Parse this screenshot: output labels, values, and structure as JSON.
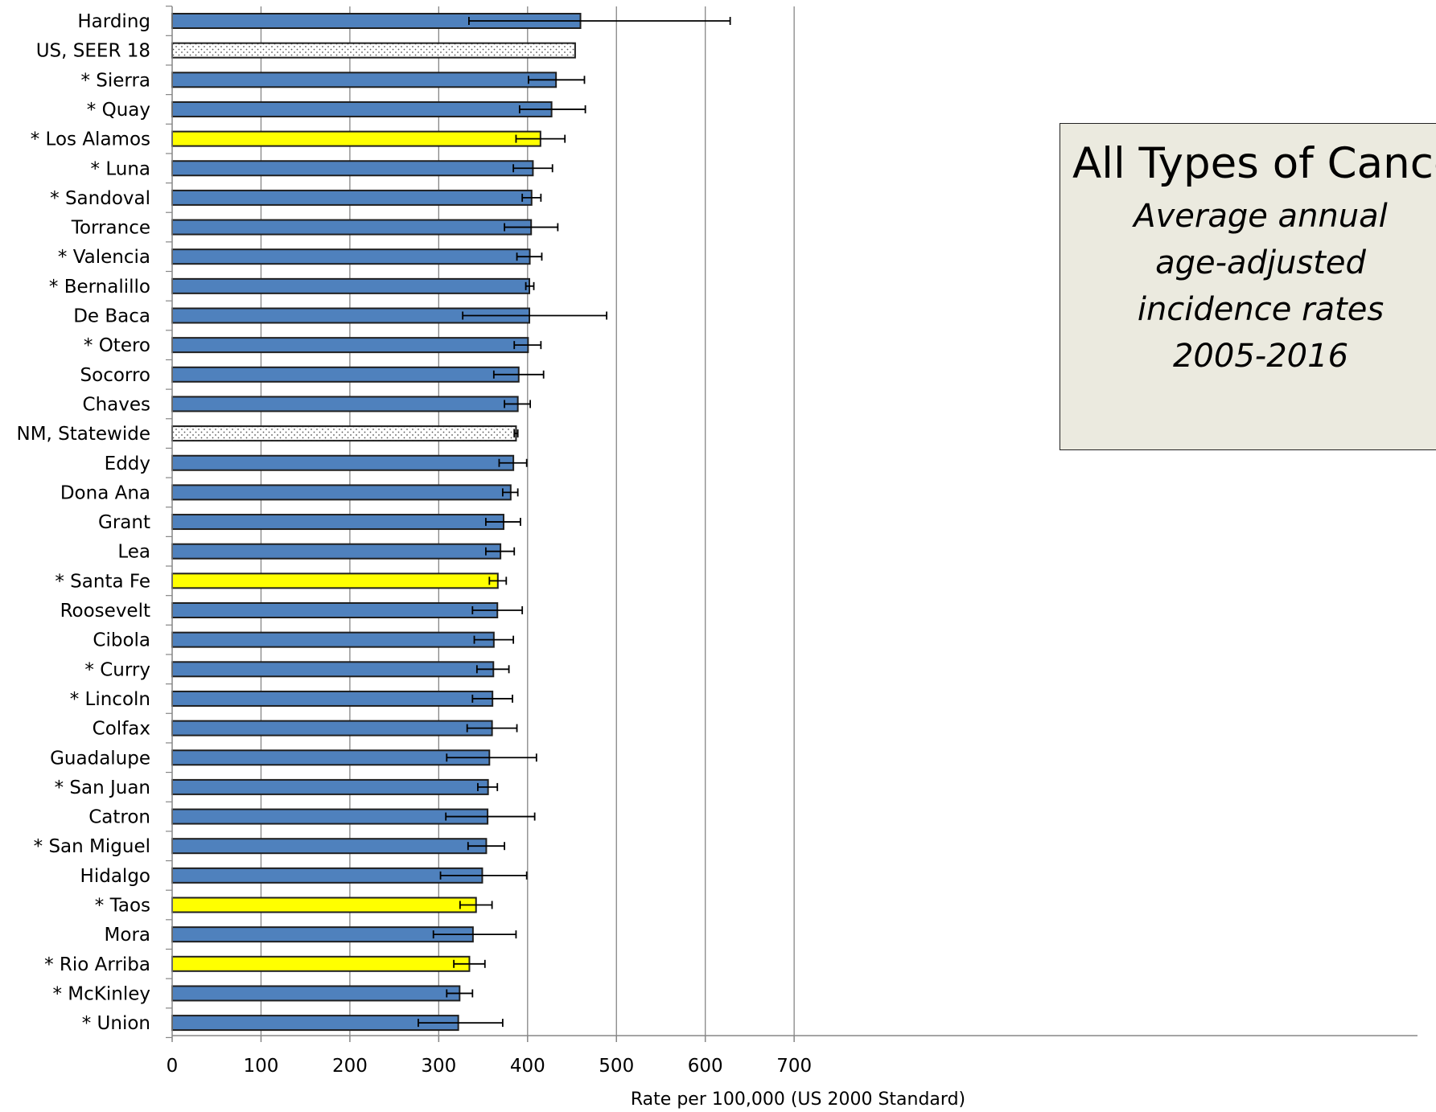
{
  "chart_data": {
    "type": "bar",
    "orientation": "horizontal",
    "title": "All Types of Cancer (Combined)",
    "subtitle": [
      "Average annual",
      "age-adjusted",
      "incidence rates",
      "2005-2016"
    ],
    "xlabel": "Rate per 100,000 (US 2000 Standard)",
    "ylabel": "",
    "xlim": [
      0,
      700
    ],
    "xticks": [
      0,
      100,
      200,
      300,
      400,
      500,
      600,
      700
    ],
    "grid": "vertical",
    "colors": {
      "county": "#4f81bd",
      "highlight": "#ffff00",
      "reference": "#ffffff",
      "border": "#1f1f1f",
      "grid": "#868686"
    },
    "categories": [
      "Harding",
      "US, SEER 18",
      "* Sierra",
      "* Quay",
      "* Los Alamos",
      "* Luna",
      "* Sandoval",
      "Torrance",
      "* Valencia",
      "* Bernalillo",
      "De Baca",
      "* Otero",
      "Socorro",
      "Chaves",
      "NM, Statewide",
      "Eddy",
      "Dona Ana",
      "Grant",
      "Lea",
      "* Santa Fe",
      "Roosevelt",
      "Cibola",
      "* Curry",
      "* Lincoln",
      "Colfax",
      "Guadalupe",
      "* San Juan",
      "Catron",
      "* San Miguel",
      "Hidalgo",
      "* Taos",
      "Mora",
      "* Rio Arriba",
      "* McKinley",
      "* Union"
    ],
    "values": [
      459.5,
      453.5,
      432.0,
      427.0,
      414.5,
      406.0,
      404.5,
      404.0,
      402.5,
      402.0,
      402.0,
      400.5,
      390.0,
      389.0,
      387.0,
      384.0,
      381.0,
      373.0,
      369.5,
      366.5,
      366.0,
      362.0,
      361.5,
      360.5,
      360.0,
      357.0,
      355.5,
      355.0,
      353.5,
      349.0,
      342.0,
      338.5,
      334.5,
      323.5,
      322.0
    ],
    "error_low": [
      334,
      null,
      401,
      391,
      387,
      384,
      394,
      374,
      388,
      398,
      327,
      385,
      362,
      374,
      385,
      368,
      372,
      353,
      353,
      357,
      338,
      340,
      343,
      338,
      332,
      309,
      344,
      308,
      333,
      302,
      324,
      294,
      317,
      309,
      277
    ],
    "error_high": [
      628,
      null,
      464,
      465,
      442,
      428,
      415,
      434,
      416,
      407,
      489,
      415,
      418,
      403,
      389,
      399,
      389,
      392,
      385,
      376,
      394,
      384,
      379,
      383,
      388,
      410,
      366,
      408,
      374,
      399,
      360,
      387,
      352,
      338,
      372
    ],
    "bar_style": [
      "county",
      "reference",
      "county",
      "county",
      "highlight",
      "county",
      "county",
      "county",
      "county",
      "county",
      "county",
      "county",
      "county",
      "county",
      "reference",
      "county",
      "county",
      "county",
      "county",
      "highlight",
      "county",
      "county",
      "county",
      "county",
      "county",
      "county",
      "county",
      "county",
      "county",
      "county",
      "highlight",
      "county",
      "highlight",
      "county",
      "county"
    ]
  }
}
